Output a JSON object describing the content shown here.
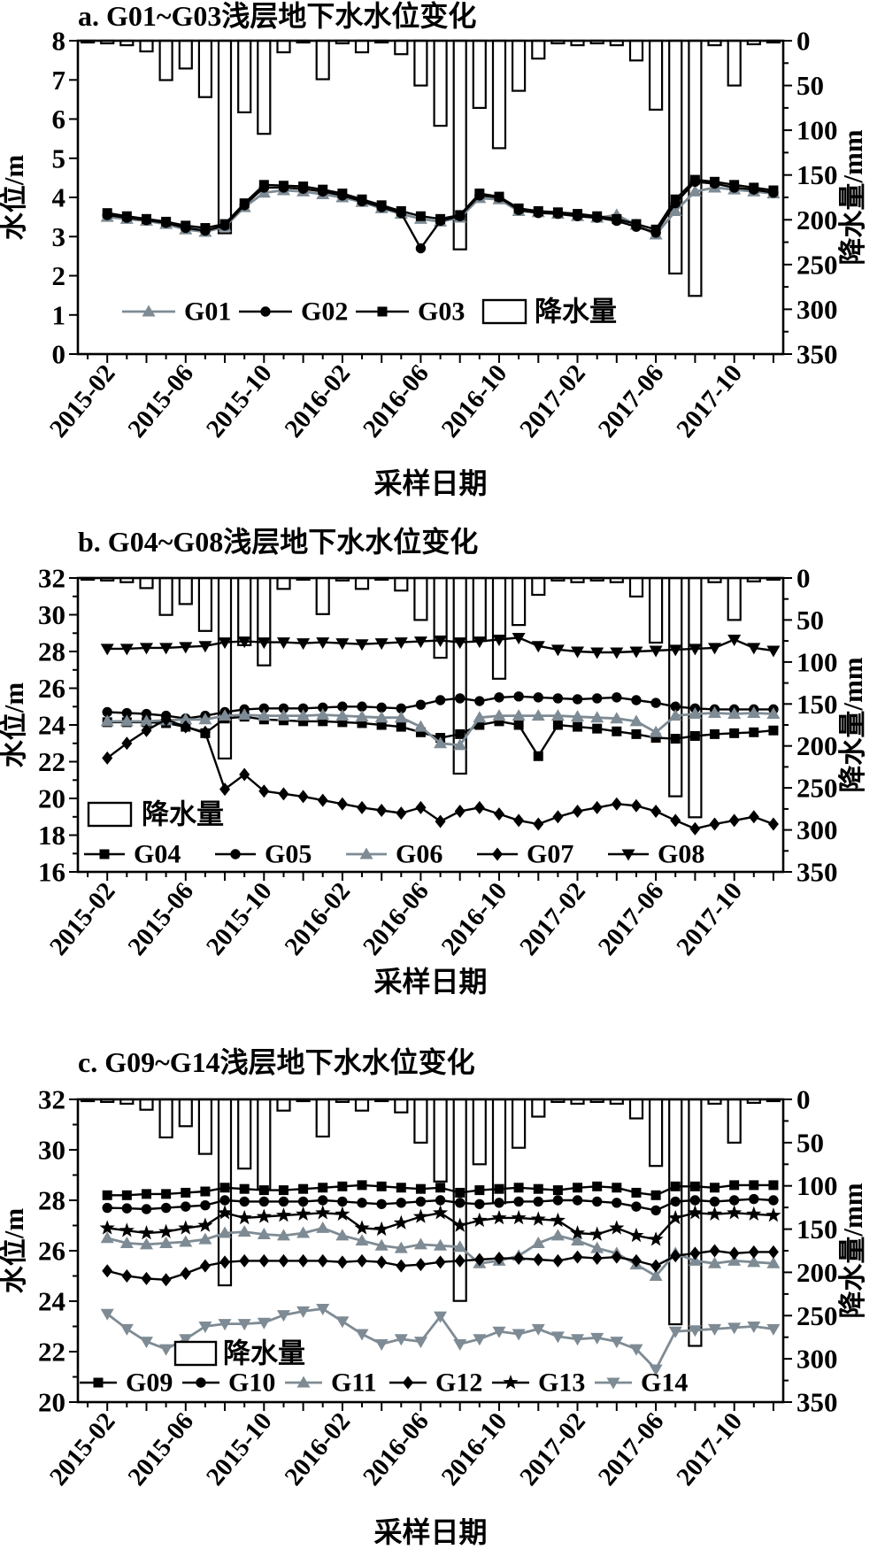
{
  "page": {
    "background": "#ffffff"
  },
  "colors": {
    "black": "#000000",
    "gray": "#7e8b94",
    "bar_fill": "#ffffff"
  },
  "axes": {
    "xlabel": "采样日期",
    "ylabel_left": "水位/m",
    "ylabel_right": "降水量/mm",
    "right_ticks": [
      0,
      50,
      100,
      150,
      200,
      250,
      300,
      350
    ],
    "right_max": 350,
    "xtick_labels": [
      "2015-02",
      "2015-06",
      "2015-10",
      "2016-02",
      "2016-06",
      "2016-10",
      "2017-02",
      "2017-06",
      "2017-10"
    ],
    "months": [
      "2015-01",
      "2015-02",
      "2015-03",
      "2015-04",
      "2015-05",
      "2015-06",
      "2015-07",
      "2015-08",
      "2015-09",
      "2015-10",
      "2015-11",
      "2015-12",
      "2016-01",
      "2016-02",
      "2016-03",
      "2016-04",
      "2016-05",
      "2016-06",
      "2016-07",
      "2016-08",
      "2016-09",
      "2016-10",
      "2016-11",
      "2016-12",
      "2017-01",
      "2017-02",
      "2017-03",
      "2017-04",
      "2017-05",
      "2017-06",
      "2017-07",
      "2017-08",
      "2017-09",
      "2017-10",
      "2017-11",
      "2017-12"
    ],
    "series_start_month_index": 1
  },
  "precip_legend_label": "降水量",
  "precipitation_mm": [
    2,
    3,
    5,
    12,
    44,
    31,
    63,
    215,
    80,
    104,
    13,
    2,
    43,
    3,
    13,
    2,
    15,
    50,
    95,
    233,
    75,
    120,
    56,
    20,
    3,
    5,
    3,
    5,
    22,
    77,
    260,
    285,
    5,
    50,
    4,
    2
  ],
  "chart_data": [
    {
      "panel": "a",
      "type": "line+bar",
      "title": "a. G01~G03浅层地下水水位变化",
      "ylabel": "水位/m",
      "ylabel_right": "降水量/mm",
      "xlabel": "采样日期",
      "ylim": [
        0,
        8
      ],
      "yticks": [
        0,
        1,
        2,
        3,
        4,
        5,
        6,
        7,
        8
      ],
      "grid": false,
      "legend_position": "inside-bottom",
      "series": [
        {
          "name": "G01",
          "marker": "triangle-up",
          "color": "gray",
          "values": [
            3.5,
            3.45,
            3.4,
            3.32,
            3.18,
            3.12,
            3.25,
            3.75,
            4.12,
            4.18,
            4.15,
            4.08,
            4.0,
            3.88,
            3.72,
            3.58,
            3.45,
            3.38,
            3.48,
            3.98,
            3.95,
            3.65,
            3.62,
            3.58,
            3.52,
            3.48,
            3.55,
            3.3,
            3.05,
            3.65,
            4.15,
            4.25,
            4.2,
            4.15,
            4.1
          ]
        },
        {
          "name": "G02",
          "marker": "circle",
          "color": "black",
          "values": [
            3.55,
            3.48,
            3.42,
            3.35,
            3.22,
            3.15,
            3.28,
            3.8,
            4.25,
            4.25,
            4.22,
            4.15,
            4.05,
            3.9,
            3.75,
            3.6,
            2.7,
            3.4,
            3.52,
            4.05,
            4.0,
            3.68,
            3.6,
            3.58,
            3.52,
            3.48,
            3.4,
            3.25,
            3.1,
            3.85,
            4.4,
            4.35,
            4.25,
            4.2,
            4.12
          ]
        },
        {
          "name": "G03",
          "marker": "square",
          "color": "black",
          "values": [
            3.6,
            3.52,
            3.45,
            3.38,
            3.28,
            3.22,
            3.32,
            3.85,
            4.32,
            4.3,
            4.28,
            4.2,
            4.1,
            3.95,
            3.8,
            3.65,
            3.52,
            3.45,
            3.55,
            4.1,
            4.02,
            3.72,
            3.65,
            3.62,
            3.58,
            3.52,
            3.45,
            3.32,
            3.18,
            3.95,
            4.45,
            4.4,
            4.32,
            4.25,
            4.18
          ]
        }
      ]
    },
    {
      "panel": "b",
      "type": "line+bar",
      "title": "b. G04~G08浅层地下水水位变化",
      "ylabel": "水位/m",
      "ylabel_right": "降水量/mm",
      "xlabel": "采样日期",
      "ylim": [
        16,
        32
      ],
      "yticks": [
        16,
        18,
        20,
        22,
        24,
        26,
        28,
        30,
        32
      ],
      "grid": false,
      "legend_position": "inside-bottom",
      "series": [
        {
          "name": "G04",
          "marker": "square",
          "color": "black",
          "values": [
            24.15,
            24.15,
            24.15,
            24.1,
            23.9,
            23.55,
            24.35,
            24.45,
            24.3,
            24.25,
            24.2,
            24.2,
            24.15,
            24.1,
            24.0,
            23.9,
            23.6,
            23.3,
            23.5,
            24.0,
            24.2,
            24.0,
            22.3,
            24.0,
            23.9,
            23.8,
            23.65,
            23.5,
            23.3,
            23.25,
            23.4,
            23.5,
            23.55,
            23.6,
            23.7
          ]
        },
        {
          "name": "G05",
          "marker": "circle",
          "color": "black",
          "values": [
            24.7,
            24.65,
            24.6,
            24.5,
            24.35,
            24.5,
            24.7,
            24.85,
            24.9,
            24.9,
            24.9,
            24.95,
            25.0,
            25.0,
            24.95,
            24.9,
            25.1,
            25.35,
            25.45,
            25.3,
            25.5,
            25.55,
            25.5,
            25.45,
            25.4,
            25.45,
            25.5,
            25.35,
            25.2,
            25.0,
            24.9,
            24.85,
            24.85,
            24.85,
            24.85
          ]
        },
        {
          "name": "G06",
          "marker": "triangle-up",
          "color": "gray",
          "values": [
            24.2,
            24.2,
            24.2,
            24.25,
            24.3,
            24.3,
            24.5,
            24.55,
            24.5,
            24.5,
            24.5,
            24.55,
            24.5,
            24.45,
            24.4,
            24.4,
            23.9,
            23.0,
            22.9,
            24.4,
            24.5,
            24.5,
            24.5,
            24.5,
            24.45,
            24.4,
            24.35,
            24.2,
            23.6,
            24.5,
            24.6,
            24.65,
            24.6,
            24.65,
            24.6
          ]
        },
        {
          "name": "G07",
          "marker": "diamond",
          "color": "black",
          "values": [
            22.2,
            23.0,
            23.7,
            24.3,
            23.9,
            23.6,
            20.5,
            21.3,
            20.4,
            20.25,
            20.1,
            19.9,
            19.7,
            19.5,
            19.35,
            19.2,
            19.5,
            18.75,
            19.3,
            19.5,
            19.15,
            18.8,
            18.6,
            19.0,
            19.3,
            19.5,
            19.7,
            19.6,
            19.3,
            18.8,
            18.35,
            18.6,
            18.8,
            19.0,
            18.6
          ]
        },
        {
          "name": "G08",
          "marker": "triangle-down",
          "color": "black",
          "values": [
            28.15,
            28.15,
            28.2,
            28.2,
            28.25,
            28.3,
            28.5,
            28.55,
            28.5,
            28.5,
            28.45,
            28.5,
            28.45,
            28.4,
            28.45,
            28.5,
            28.55,
            28.6,
            28.5,
            28.55,
            28.65,
            28.75,
            28.3,
            28.1,
            28.0,
            27.95,
            27.95,
            28.0,
            28.05,
            28.1,
            28.15,
            28.2,
            28.65,
            28.2,
            28.05
          ]
        }
      ]
    },
    {
      "panel": "c",
      "type": "line+bar",
      "title": "c. G09~G14浅层地下水水位变化",
      "ylabel": "水位/m",
      "ylabel_right": "降水量/mm",
      "xlabel": "采样日期",
      "ylim": [
        20,
        32
      ],
      "yticks": [
        20,
        22,
        24,
        26,
        28,
        30,
        32
      ],
      "grid": false,
      "legend_position": "inside-bottom",
      "series": [
        {
          "name": "G09",
          "marker": "square",
          "color": "black",
          "values": [
            28.2,
            28.2,
            28.25,
            28.25,
            28.3,
            28.35,
            28.5,
            28.45,
            28.4,
            28.4,
            28.45,
            28.5,
            28.55,
            28.6,
            28.55,
            28.5,
            28.45,
            28.5,
            28.3,
            28.4,
            28.45,
            28.5,
            28.45,
            28.4,
            28.5,
            28.55,
            28.5,
            28.3,
            28.2,
            28.55,
            28.55,
            28.5,
            28.6,
            28.6,
            28.6
          ]
        },
        {
          "name": "G10",
          "marker": "circle",
          "color": "black",
          "values": [
            27.7,
            27.68,
            27.65,
            27.7,
            27.75,
            27.8,
            28.0,
            27.95,
            27.95,
            27.95,
            27.95,
            28.0,
            27.95,
            27.9,
            27.85,
            27.9,
            27.95,
            28.0,
            27.9,
            27.85,
            27.9,
            27.95,
            27.95,
            28.0,
            28.0,
            27.95,
            27.9,
            27.75,
            27.6,
            27.95,
            28.0,
            27.95,
            28.0,
            28.05,
            28.0
          ]
        },
        {
          "name": "G11",
          "marker": "triangle-up",
          "color": "gray",
          "values": [
            26.5,
            26.3,
            26.25,
            26.3,
            26.35,
            26.45,
            26.7,
            26.75,
            26.65,
            26.6,
            26.7,
            26.9,
            26.6,
            26.4,
            26.2,
            26.1,
            26.25,
            26.2,
            26.15,
            25.5,
            25.6,
            25.8,
            26.3,
            26.6,
            26.4,
            26.1,
            25.9,
            25.45,
            25.0,
            25.9,
            25.6,
            25.5,
            25.6,
            25.55,
            25.5
          ]
        },
        {
          "name": "G12",
          "marker": "diamond",
          "color": "black",
          "values": [
            25.2,
            25.0,
            24.9,
            24.85,
            25.1,
            25.4,
            25.55,
            25.6,
            25.6,
            25.6,
            25.6,
            25.6,
            25.55,
            25.6,
            25.55,
            25.4,
            25.45,
            25.55,
            25.6,
            25.65,
            25.7,
            25.7,
            25.65,
            25.6,
            25.75,
            25.7,
            25.75,
            25.6,
            25.4,
            25.8,
            25.9,
            26.0,
            25.9,
            25.95,
            25.95
          ]
        },
        {
          "name": "G13",
          "marker": "star",
          "color": "black",
          "values": [
            26.9,
            26.8,
            26.7,
            26.75,
            26.9,
            27.0,
            27.5,
            27.3,
            27.35,
            27.4,
            27.45,
            27.5,
            27.45,
            26.9,
            26.85,
            27.1,
            27.35,
            27.5,
            27.0,
            27.2,
            27.3,
            27.3,
            27.25,
            27.2,
            26.7,
            26.65,
            26.9,
            26.6,
            26.45,
            27.3,
            27.5,
            27.45,
            27.5,
            27.45,
            27.4
          ]
        },
        {
          "name": "G14",
          "marker": "triangle-down",
          "color": "gray",
          "values": [
            23.5,
            22.9,
            22.4,
            22.1,
            22.5,
            23.0,
            23.1,
            23.1,
            23.15,
            23.45,
            23.6,
            23.7,
            23.2,
            22.7,
            22.3,
            22.5,
            22.4,
            23.4,
            22.3,
            22.5,
            22.8,
            22.7,
            22.9,
            22.6,
            22.5,
            22.55,
            22.4,
            22.1,
            21.3,
            22.8,
            22.85,
            22.9,
            22.95,
            23.0,
            22.9
          ]
        }
      ]
    }
  ]
}
